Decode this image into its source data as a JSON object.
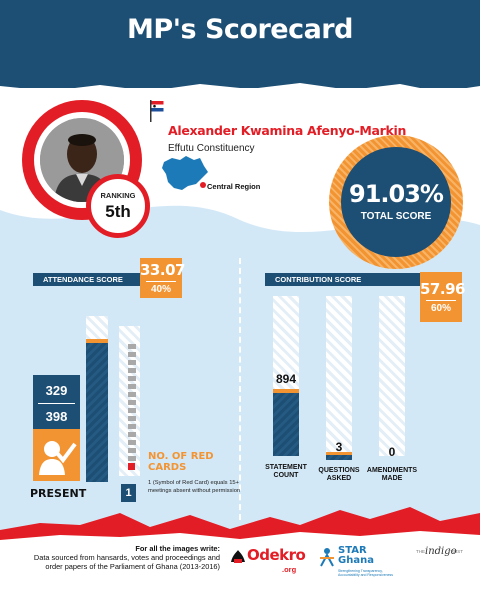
{
  "header": {
    "title": "MP's Scorecard"
  },
  "mp": {
    "name": "Alexander Kwamina Afenyo-Markin",
    "constituency": "Effutu Constituency",
    "region": "Central Region",
    "ranking_label": "RANKING",
    "ranking_value": "5th"
  },
  "total_score": {
    "value": "91.03%",
    "label": "TOTAL SCORE",
    "fraction": 0.9103
  },
  "attendance": {
    "section_label": "ATTENDANCE SCORE",
    "score": "33.07",
    "weight": "40%",
    "present": "329",
    "total": "398",
    "present_label": "PRESENT",
    "present_fraction": 0.8266
  },
  "red_cards": {
    "title": "NO. OF RED CARDS",
    "count": "1",
    "note": "1 (Symbol of Red Card) equals 15+ meetings absent without permission"
  },
  "contribution": {
    "section_label": "CONTRIBUTION SCORE",
    "score": "57.96",
    "weight": "60%",
    "bars": [
      {
        "label": "STATEMENT COUNT",
        "value": "894"
      },
      {
        "label": "QUESTIONS ASKED",
        "value": "3"
      },
      {
        "label": "AMENDMENTS MADE",
        "value": "0"
      }
    ]
  },
  "footer": {
    "credit_title": "For all the images write:",
    "credit_body": "Data sourced from hansards, votes and proceedings and order papers of the Parliament of Ghana (2013-2016)",
    "logos": {
      "odekro": "Odekro",
      "odekro_sub": ".org",
      "star": "STAR Ghana",
      "star_tag": "Strengthening Transparency, Accountability and Responsiveness",
      "indigo_the": "THE",
      "indigo": "indigo",
      "indigo_trust": "TRUST"
    }
  },
  "colors": {
    "navy": "#1d4e73",
    "red": "#e31d25",
    "orange": "#f39432",
    "sky": "#d3e8f7"
  }
}
